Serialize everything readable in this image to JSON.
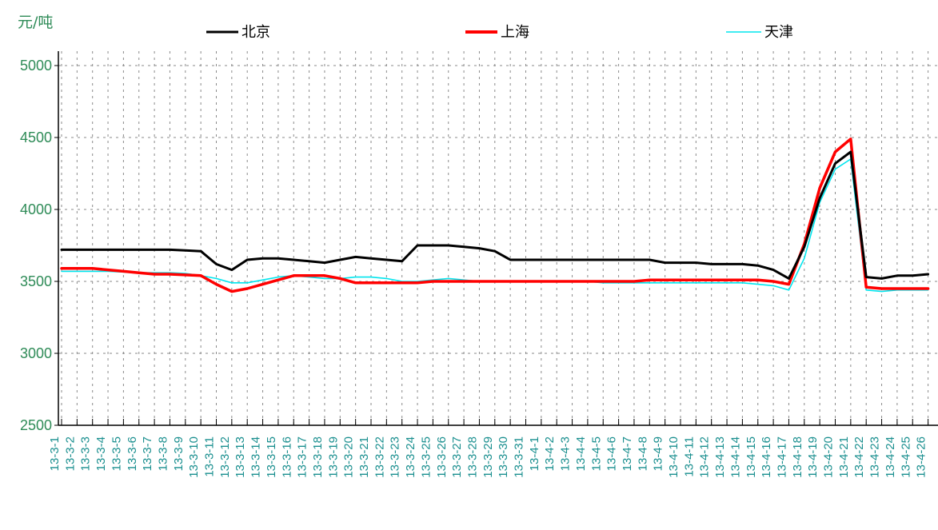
{
  "chart_data": {
    "type": "line",
    "unit_label": "元/吨",
    "ylim": [
      2500,
      5000
    ],
    "yticks": [
      "5000",
      "4500",
      "4000",
      "3500",
      "3000",
      "2500"
    ],
    "grid": true,
    "legend_position": "top",
    "categories": [
      "13-3-1",
      "13-3-2",
      "13-3-3",
      "13-3-4",
      "13-3-5",
      "13-3-6",
      "13-3-7",
      "13-3-8",
      "13-3-9",
      "13-3-10",
      "13-3-11",
      "13-3-12",
      "13-3-13",
      "13-3-14",
      "13-3-15",
      "13-3-16",
      "13-3-17",
      "13-3-18",
      "13-3-19",
      "13-3-20",
      "13-3-21",
      "13-3-22",
      "13-3-23",
      "13-3-24",
      "13-3-25",
      "13-3-26",
      "13-3-27",
      "13-3-28",
      "13-3-29",
      "13-3-30",
      "13-3-31",
      "13-4-1",
      "13-4-2",
      "13-4-3",
      "13-4-4",
      "13-4-5",
      "13-4-6",
      "13-4-7",
      "13-4-8",
      "13-4-9",
      "13-4-10",
      "13-4-11",
      "13-4-12",
      "13-4-13",
      "13-4-14",
      "13-4-15",
      "13-4-16",
      "13-4-17",
      "13-4-18",
      "13-4-19",
      "13-4-20",
      "13-4-21",
      "13-4-22",
      "13-4-23",
      "13-4-24",
      "13-4-25",
      "13-4-26"
    ],
    "series": [
      {
        "name": "北京",
        "color": "#000000",
        "values": [
          3720,
          3720,
          3720,
          3720,
          3720,
          3720,
          3720,
          3720,
          3715,
          3710,
          3620,
          3580,
          3650,
          3660,
          3660,
          3650,
          3640,
          3630,
          3650,
          3670,
          3660,
          3650,
          3640,
          3750,
          3750,
          3750,
          3740,
          3730,
          3710,
          3650,
          3650,
          3650,
          3650,
          3650,
          3650,
          3650,
          3650,
          3650,
          3650,
          3630,
          3630,
          3630,
          3620,
          3620,
          3620,
          3610,
          3580,
          3520,
          3740,
          4080,
          4320,
          4400,
          3530,
          3520,
          3540,
          3540,
          3550
        ]
      },
      {
        "name": "上海",
        "color": "#ff0000",
        "values": [
          3590,
          3590,
          3590,
          3580,
          3570,
          3560,
          3550,
          3550,
          3545,
          3540,
          3480,
          3430,
          3450,
          3480,
          3510,
          3540,
          3540,
          3540,
          3520,
          3490,
          3490,
          3490,
          3490,
          3490,
          3500,
          3500,
          3500,
          3500,
          3500,
          3500,
          3500,
          3500,
          3500,
          3500,
          3500,
          3500,
          3500,
          3500,
          3510,
          3510,
          3510,
          3510,
          3510,
          3510,
          3510,
          3510,
          3500,
          3480,
          3760,
          4150,
          4400,
          4490,
          3460,
          3450,
          3450,
          3450,
          3450
        ]
      },
      {
        "name": "天津",
        "color": "#00e5ee",
        "values": [
          3570,
          3570,
          3570,
          3570,
          3565,
          3560,
          3560,
          3560,
          3555,
          3540,
          3520,
          3490,
          3490,
          3510,
          3530,
          3540,
          3530,
          3520,
          3520,
          3530,
          3530,
          3520,
          3500,
          3500,
          3510,
          3520,
          3510,
          3500,
          3500,
          3500,
          3500,
          3500,
          3500,
          3500,
          3500,
          3490,
          3490,
          3490,
          3490,
          3490,
          3490,
          3490,
          3490,
          3490,
          3490,
          3480,
          3470,
          3440,
          3660,
          4050,
          4280,
          4350,
          3440,
          3430,
          3440,
          3440,
          3440
        ]
      }
    ]
  }
}
